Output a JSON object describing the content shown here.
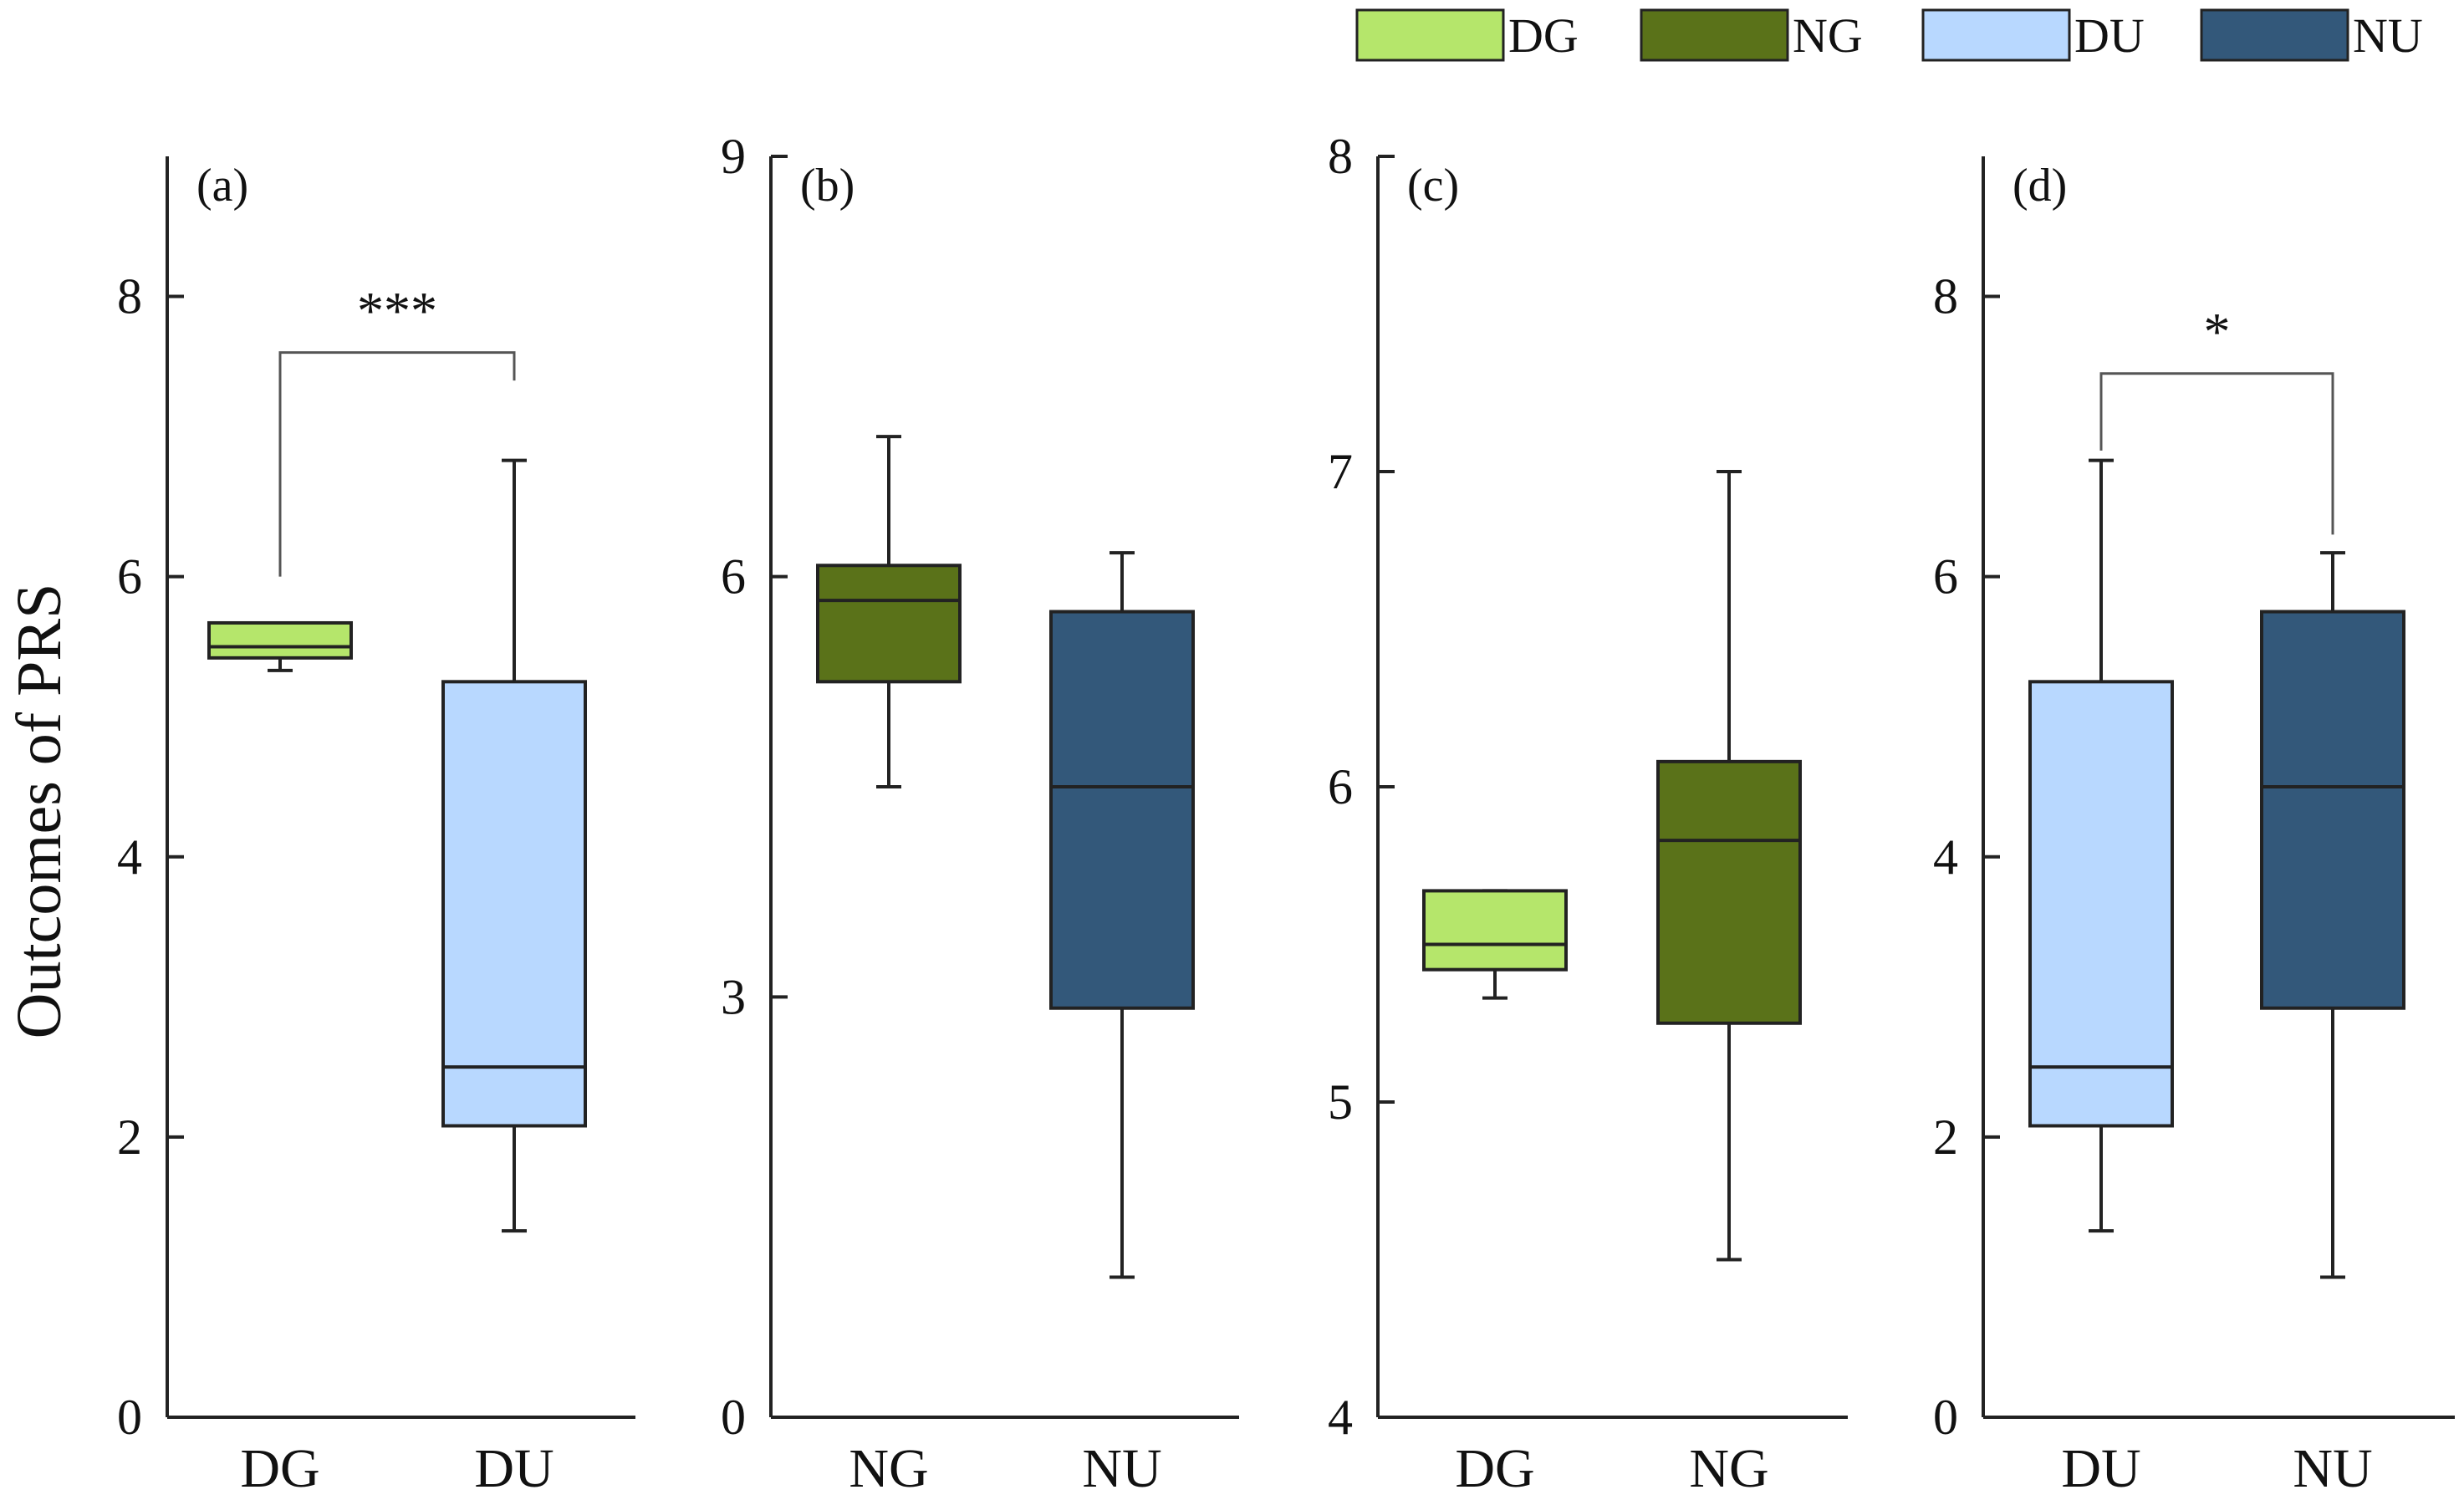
{
  "chart_data": {
    "type": "box",
    "ylabel": "Outcomes of PRS",
    "colors": {
      "DG": "#b5e66b",
      "NG": "#5a7219",
      "DU": "#b8d8ff",
      "NU": "#33587a"
    },
    "legend": {
      "position": "top-right",
      "entries": [
        {
          "name": "DG",
          "color": "#b5e66b"
        },
        {
          "name": "NG",
          "color": "#5a7219"
        },
        {
          "name": "DU",
          "color": "#b8d8ff"
        },
        {
          "name": "NU",
          "color": "#33587a"
        }
      ]
    },
    "panels": [
      {
        "label": "(a)",
        "ylim": [
          0,
          9
        ],
        "ticks": [
          "0",
          "2",
          "4",
          "6",
          "8"
        ],
        "tick_values": [
          0,
          2,
          4,
          6,
          8
        ],
        "categories": [
          "DG",
          "DU"
        ],
        "boxes": [
          {
            "name": "DG",
            "min": 5.33,
            "q1": 5.42,
            "median": 5.5,
            "q3": 5.67,
            "max": 5.67
          },
          {
            "name": "DU",
            "min": 1.33,
            "q1": 2.08,
            "median": 2.5,
            "q3": 5.25,
            "max": 6.83
          }
        ],
        "significance": {
          "text": "***",
          "left_anchor": 6.0,
          "right_anchor": 7.4,
          "bar_y": 7.6,
          "text_y": 7.95
        }
      },
      {
        "label": "(b)",
        "ylim": [
          0,
          9
        ],
        "ticks": [
          "0",
          "3",
          "6",
          "9"
        ],
        "tick_values": [
          0,
          3,
          6,
          9
        ],
        "categories": [
          "NG",
          "NU"
        ],
        "boxes": [
          {
            "name": "NG",
            "min": 4.5,
            "q1": 5.25,
            "median": 5.83,
            "q3": 6.08,
            "max": 7.0
          },
          {
            "name": "NU",
            "min": 1.0,
            "q1": 2.92,
            "median": 4.5,
            "q3": 5.75,
            "max": 6.17
          }
        ]
      },
      {
        "label": "(c)",
        "ylim": [
          4,
          8
        ],
        "ticks": [
          "4",
          "5",
          "6",
          "7",
          "8"
        ],
        "tick_values": [
          4,
          5,
          6,
          7,
          8
        ],
        "categories": [
          "DG",
          "NG"
        ],
        "boxes": [
          {
            "name": "DG",
            "min": 5.33,
            "q1": 5.42,
            "median": 5.5,
            "q3": 5.67,
            "max": 5.67
          },
          {
            "name": "NG",
            "min": 4.5,
            "q1": 5.25,
            "median": 5.83,
            "q3": 6.08,
            "max": 7.0
          }
        ]
      },
      {
        "label": "(d)",
        "ylim": [
          0,
          9
        ],
        "ticks": [
          "0",
          "2",
          "4",
          "6",
          "8"
        ],
        "tick_values": [
          0,
          2,
          4,
          6,
          8
        ],
        "categories": [
          "DU",
          "NU"
        ],
        "boxes": [
          {
            "name": "DU",
            "min": 1.33,
            "q1": 2.08,
            "median": 2.5,
            "q3": 5.25,
            "max": 6.83
          },
          {
            "name": "NU",
            "min": 1.0,
            "q1": 2.92,
            "median": 4.5,
            "q3": 5.75,
            "max": 6.17
          }
        ],
        "significance": {
          "text": "*",
          "left_anchor": 6.9,
          "right_anchor": 6.3,
          "bar_y": 7.45,
          "text_y": 7.8
        }
      }
    ]
  }
}
